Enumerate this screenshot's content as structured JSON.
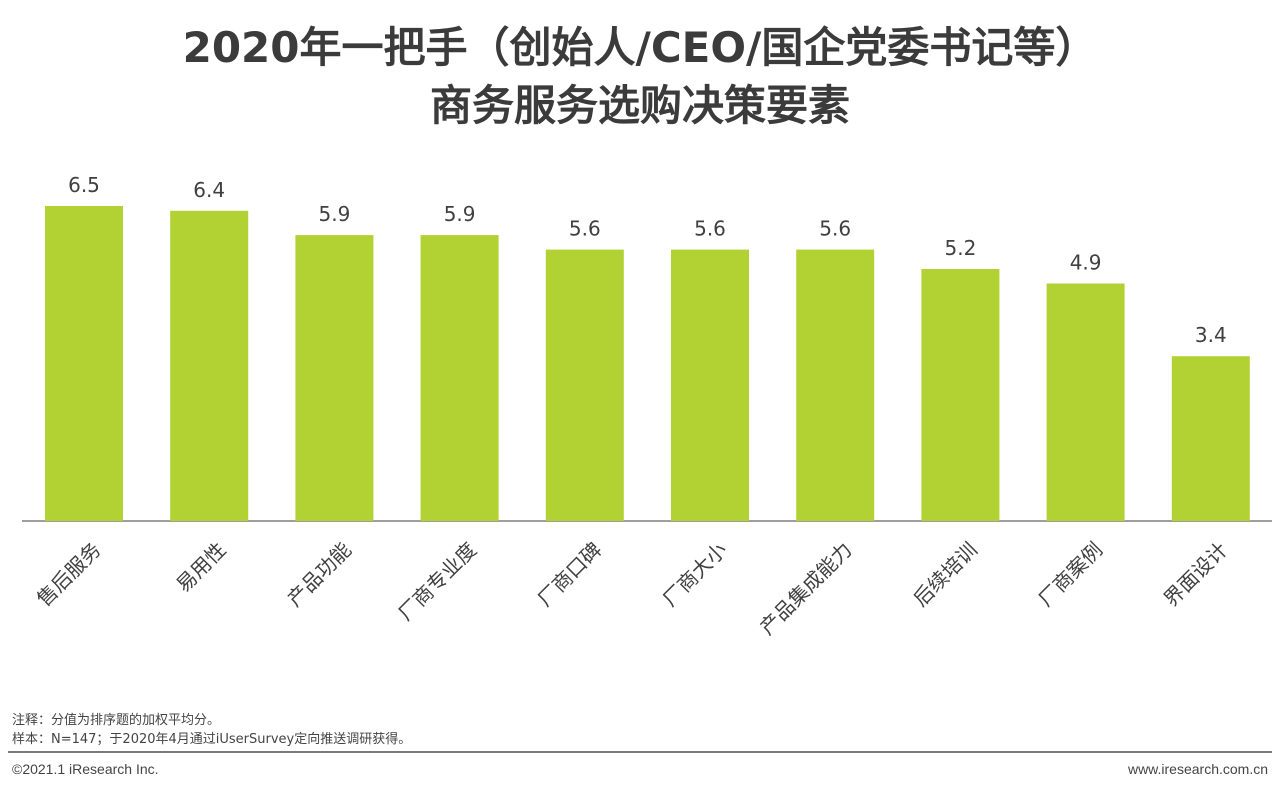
{
  "header": {
    "title_line1": "2020年一把手（创始人/CEO/国企党委书记等）",
    "title_line2": "商务服务选购决策要素"
  },
  "chart_data": {
    "type": "bar",
    "title": "2020年一把手（创始人/CEO/国企党委书记等）商务服务选购决策要素",
    "categories": [
      "售后服务",
      "易用性",
      "产品功能",
      "厂商专业度",
      "厂商口碑",
      "厂商大小",
      "产品集成能力",
      "后续培训",
      "厂商案例",
      "界面设计"
    ],
    "values": [
      6.5,
      6.4,
      5.9,
      5.9,
      5.6,
      5.6,
      5.6,
      5.2,
      4.9,
      3.4
    ],
    "value_labels": [
      "6.5",
      "6.4",
      "5.9",
      "5.9",
      "5.6",
      "5.6",
      "5.6",
      "5.2",
      "4.9",
      "3.4"
    ],
    "xlabel": "",
    "ylabel": "",
    "ylim": [
      0,
      7
    ],
    "grid": false,
    "legend": "none",
    "bar_color": "#b2d234",
    "axis_color": "#7f7f7f",
    "label_color": "#404040"
  },
  "notes": {
    "note1": "注释：分值为排序题的加权平均分。",
    "note2": "样本：N=147；于2020年4月通过iUserSurvey定向推送调研获得。"
  },
  "footer": {
    "copyright": "©2021.1 iResearch Inc.",
    "website": "www.iresearch.com.cn"
  }
}
